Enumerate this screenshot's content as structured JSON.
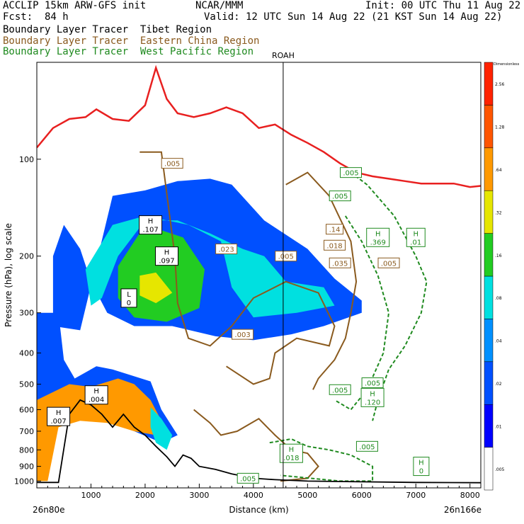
{
  "header": {
    "line1_left": "ACCLIP 15km ARW-GFS init",
    "line1_center": "NCAR/MMM",
    "line1_right": "Init: 00 UTC Thu 11 Aug 22",
    "line2_left": "Fcst:  84 h",
    "line2_right": "Valid: 12 UTC Sun 14 Aug 22 (21 KST Sun 14 Aug 22)",
    "tracers": [
      {
        "name": "Boundary Layer Tracer",
        "region": "Tibet Region",
        "color": "#000000"
      },
      {
        "name": "Boundary Layer Tracer",
        "region": "Eastern China Region",
        "color": "#8a5a1e"
      },
      {
        "name": "Boundary Layer Tracer",
        "region": "West Pacific Region",
        "color": "#1f8a1f"
      }
    ]
  },
  "chart_data": {
    "type": "cross-section",
    "xlabel": "Distance (km)",
    "ylabel": "Pressure (hPa), log scale",
    "xlim": [
      0,
      8200
    ],
    "ylim": [
      1050,
      50
    ],
    "y_scale": "log",
    "x_ticks": [
      1000,
      2000,
      3000,
      4000,
      5000,
      6000,
      7000,
      8000
    ],
    "y_ticks": [
      100,
      200,
      300,
      400,
      500,
      600,
      700,
      800,
      900,
      1000
    ],
    "x_endpoints": [
      "26n80e",
      "26n166e"
    ],
    "marker": {
      "label": "ROAH",
      "x": 4550
    },
    "colorbar": {
      "title": "Dimensionless",
      "levels": [
        ".005",
        ".01",
        ".02",
        ".04",
        ".08",
        ".16",
        ".32",
        ".64",
        "1.28",
        "2.56"
      ],
      "colors": [
        "#ffffff",
        "#0000ff",
        "#0050ff",
        "#0090ff",
        "#00e0e0",
        "#22cc22",
        "#e6e600",
        "#ff9900",
        "#ff5500",
        "#ff2200"
      ]
    },
    "series": [
      {
        "name": "Tibet Region",
        "style": "filled",
        "polygons": [
          {
            "value": ".02",
            "points": [
              [
                300,
                330
              ],
              [
                800,
                340
              ],
              [
                1400,
                130
              ],
              [
                2000,
                125
              ],
              [
                2600,
                117
              ],
              [
                3200,
                115
              ],
              [
                3600,
                120
              ],
              [
                4200,
                155
              ],
              [
                5000,
                190
              ],
              [
                5500,
                235
              ],
              [
                6000,
                275
              ],
              [
                6000,
                300
              ],
              [
                5300,
                330
              ],
              [
                4700,
                350
              ],
              [
                4000,
                365
              ],
              [
                3300,
                355
              ],
              [
                2500,
                330
              ],
              [
                1800,
                330
              ],
              [
                1300,
                300
              ],
              [
                1000,
                240
              ],
              [
                800,
                190
              ],
              [
                500,
                160
              ],
              [
                300,
                200
              ]
            ]
          },
          {
            "value": ".08",
            "points": [
              [
                900,
                220
              ],
              [
                1400,
                160
              ],
              [
                2000,
                150
              ],
              [
                2800,
                160
              ],
              [
                3400,
                180
              ],
              [
                3600,
                250
              ],
              [
                4000,
                310
              ],
              [
                4800,
                300
              ],
              [
                5500,
                285
              ],
              [
                5300,
                250
              ],
              [
                4600,
                240
              ],
              [
                4200,
                200
              ],
              [
                3800,
                190
              ],
              [
                3200,
                170
              ],
              [
                2600,
                155
              ],
              [
                2000,
                155
              ],
              [
                1500,
                200
              ],
              [
                1200,
                270
              ],
              [
                1000,
                285
              ]
            ]
          },
          {
            "value": ".16",
            "points": [
              [
                1500,
                215
              ],
              [
                2000,
                160
              ],
              [
                2700,
                175
              ],
              [
                3100,
                220
              ],
              [
                3000,
                290
              ],
              [
                2400,
                320
              ],
              [
                1800,
                310
              ],
              [
                1500,
                270
              ]
            ]
          },
          {
            "value": ".32",
            "points": [
              [
                1900,
                230
              ],
              [
                2200,
                225
              ],
              [
                2500,
                260
              ],
              [
                2200,
                280
              ],
              [
                1900,
                265
              ]
            ]
          },
          {
            "value": ".02",
            "points": [
              [
                0,
                300
              ],
              [
                400,
                300
              ],
              [
                500,
                420
              ],
              [
                700,
                480
              ],
              [
                1100,
                440
              ],
              [
                1400,
                450
              ],
              [
                2100,
                490
              ],
              [
                2300,
                600
              ],
              [
                2600,
                720
              ],
              [
                2300,
                760
              ],
              [
                1800,
                700
              ],
              [
                1200,
                640
              ],
              [
                800,
                640
              ],
              [
                400,
                650
              ],
              [
                200,
                700
              ],
              [
                0,
                700
              ]
            ]
          },
          {
            "value": ".64",
            "points": [
              [
                0,
                560
              ],
              [
                600,
                500
              ],
              [
                1000,
                510
              ],
              [
                1500,
                480
              ],
              [
                1800,
                500
              ],
              [
                2100,
                560
              ],
              [
                2300,
                650
              ],
              [
                2200,
                720
              ],
              [
                1800,
                700
              ],
              [
                1300,
                660
              ],
              [
                800,
                650
              ],
              [
                400,
                680
              ],
              [
                200,
                1000
              ],
              [
                0,
                1000
              ]
            ]
          },
          {
            "value": ".08",
            "points": [
              [
                2100,
                590
              ],
              [
                2300,
                640
              ],
              [
                2500,
                720
              ],
              [
                2400,
                800
              ],
              [
                2200,
                760
              ],
              [
                2100,
                680
              ]
            ]
          }
        ],
        "extrema": [
          {
            "type": "H",
            "value": ".107",
            "x": 2100,
            "y": 160
          },
          {
            "type": "H",
            "value": ".097",
            "x": 2400,
            "y": 200
          },
          {
            "type": "H",
            "value": ".004",
            "x": 1100,
            "y": 540
          },
          {
            "type": "H",
            "value": ".007",
            "x": 400,
            "y": 630
          },
          {
            "type": "L",
            "value": "0",
            "x": 1700,
            "y": 270
          }
        ]
      },
      {
        "name": "Eastern China Region",
        "style": "contour",
        "lines": [
          [
            [
              1900,
              95
            ],
            [
              2300,
              95
            ],
            [
              2550,
              200
            ],
            [
              2600,
              280
            ],
            [
              2800,
              360
            ],
            [
              3200,
              380
            ],
            [
              3600,
              330
            ],
            [
              4000,
              270
            ],
            [
              4600,
              240
            ],
            [
              5200,
              260
            ],
            [
              5500,
              330
            ],
            [
              5400,
              380
            ],
            [
              4800,
              360
            ],
            [
              4400,
              400
            ],
            [
              4300,
              480
            ],
            [
              4000,
              500
            ],
            [
              3500,
              440
            ]
          ],
          [
            [
              4600,
              120
            ],
            [
              5000,
              110
            ],
            [
              5400,
              130
            ],
            [
              5800,
              180
            ],
            [
              5900,
              240
            ],
            [
              5800,
              300
            ],
            [
              5700,
              360
            ],
            [
              5500,
              420
            ],
            [
              5200,
              480
            ],
            [
              5100,
              520
            ]
          ],
          [
            [
              2900,
              600
            ],
            [
              3200,
              660
            ],
            [
              3400,
              720
            ],
            [
              3700,
              700
            ],
            [
              4100,
              640
            ],
            [
              4400,
              720
            ],
            [
              4700,
              800
            ],
            [
              5000,
              820
            ],
            [
              5200,
              900
            ],
            [
              5000,
              980
            ],
            [
              4500,
              1000
            ]
          ]
        ],
        "labels": [
          ".005",
          ".023",
          ".003",
          ".005",
          ".018",
          ".005",
          ".14",
          ".035"
        ]
      },
      {
        "name": "West Pacific Region",
        "style": "dashed contour",
        "lines": [
          [
            [
              5800,
              110
            ],
            [
              6100,
              120
            ],
            [
              6600,
              150
            ],
            [
              7000,
              200
            ],
            [
              7200,
              240
            ],
            [
              7100,
              300
            ],
            [
              6800,
              380
            ],
            [
              6500,
              450
            ],
            [
              6300,
              560
            ],
            [
              6200,
              650
            ]
          ],
          [
            [
              5700,
              150
            ],
            [
              6000,
              180
            ],
            [
              6300,
              230
            ],
            [
              6500,
              300
            ],
            [
              6400,
              400
            ],
            [
              6100,
              520
            ],
            [
              5800,
              600
            ],
            [
              5500,
              560
            ]
          ],
          [
            [
              4300,
              760
            ],
            [
              4700,
              740
            ],
            [
              5000,
              780
            ],
            [
              5400,
              800
            ],
            [
              5800,
              830
            ],
            [
              6200,
              900
            ],
            [
              6200,
              1000
            ],
            [
              5600,
              1000
            ],
            [
              4500,
              960
            ]
          ]
        ],
        "extrema": [
          {
            "type": "H",
            "value": ".369",
            "x": 6300,
            "y": 175
          },
          {
            "type": "H",
            "value": ".01",
            "x": 7000,
            "y": 175
          },
          {
            "type": "H",
            "value": ".120",
            "x": 6200,
            "y": 550
          },
          {
            "type": "H",
            "value": ".018",
            "x": 4700,
            "y": 820
          },
          {
            "type": "H",
            "value": "0",
            "x": 7100,
            "y": 900
          }
        ],
        "labels": [
          ".005",
          ".005",
          ".005",
          ".005",
          ".005",
          ".005"
        ]
      }
    ],
    "lines": [
      {
        "name": "tropopause",
        "color": "#e82020",
        "points": [
          [
            0,
            92
          ],
          [
            300,
            80
          ],
          [
            600,
            75
          ],
          [
            900,
            74
          ],
          [
            1100,
            70
          ],
          [
            1400,
            75
          ],
          [
            1700,
            76
          ],
          [
            2000,
            68
          ],
          [
            2200,
            52
          ],
          [
            2400,
            65
          ],
          [
            2600,
            72
          ],
          [
            2900,
            74
          ],
          [
            3200,
            72
          ],
          [
            3500,
            69
          ],
          [
            3800,
            72
          ],
          [
            4100,
            80
          ],
          [
            4400,
            78
          ],
          [
            4700,
            84
          ],
          [
            5000,
            89
          ],
          [
            5300,
            95
          ],
          [
            5600,
            103
          ],
          [
            5900,
            110
          ],
          [
            6200,
            113
          ],
          [
            6500,
            115
          ],
          [
            6800,
            117
          ],
          [
            7100,
            119
          ],
          [
            7400,
            119
          ],
          [
            7700,
            119
          ],
          [
            8000,
            122
          ],
          [
            8200,
            121
          ]
        ]
      },
      {
        "name": "surface pressure",
        "color": "#000000",
        "points": [
          [
            0,
            1010
          ],
          [
            400,
            1010
          ],
          [
            600,
            620
          ],
          [
            800,
            560
          ],
          [
            1000,
            580
          ],
          [
            1200,
            620
          ],
          [
            1400,
            680
          ],
          [
            1600,
            620
          ],
          [
            1800,
            680
          ],
          [
            2000,
            720
          ],
          [
            2200,
            780
          ],
          [
            2400,
            840
          ],
          [
            2550,
            900
          ],
          [
            2700,
            830
          ],
          [
            2850,
            850
          ],
          [
            3000,
            900
          ],
          [
            3300,
            920
          ],
          [
            3600,
            950
          ],
          [
            4000,
            980
          ],
          [
            4400,
            990
          ],
          [
            5000,
            1000
          ],
          [
            6000,
            1005
          ],
          [
            7000,
            1010
          ],
          [
            8200,
            1012
          ]
        ]
      }
    ]
  }
}
